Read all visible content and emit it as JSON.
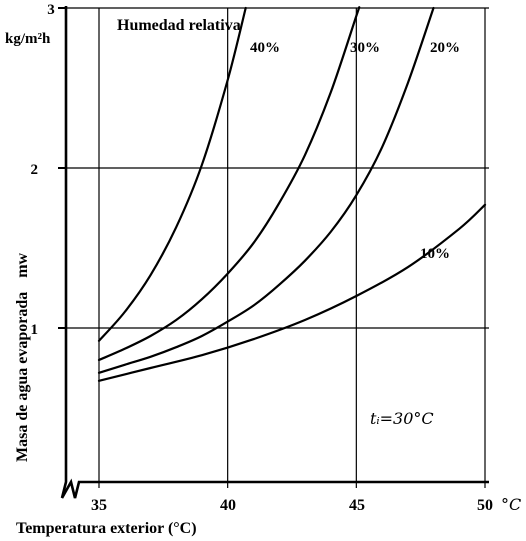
{
  "chart_data": {
    "type": "line",
    "xlabel": "Temperatura exterior (°C)",
    "ylabel": "Masa de agua evaporada",
    "ylabel_symbol": "mw",
    "y_unit": "kg/m²h",
    "x_unit": "°C",
    "xlim": [
      35,
      50
    ],
    "ylim": [
      0,
      3
    ],
    "x_ticks": [
      "35",
      "40",
      "45",
      "50"
    ],
    "y_ticks": [
      "1",
      "2",
      "3"
    ],
    "grid": true,
    "legend_title": "Humedad relativa",
    "annotation": "tᵢ=30°C",
    "series": [
      {
        "name": "40%",
        "x": [
          35,
          36,
          37,
          38,
          39,
          40,
          40.7
        ],
        "y": [
          0.92,
          1.1,
          1.33,
          1.63,
          2.02,
          2.55,
          3.0
        ]
      },
      {
        "name": "30%",
        "x": [
          35,
          36,
          37,
          38,
          39,
          40,
          41,
          42,
          43,
          44,
          45,
          45.1
        ],
        "y": [
          0.8,
          0.87,
          0.95,
          1.05,
          1.18,
          1.34,
          1.53,
          1.78,
          2.08,
          2.47,
          2.95,
          3.0
        ]
      },
      {
        "name": "20%",
        "x": [
          35,
          36,
          37,
          38,
          39,
          40,
          41,
          42,
          43,
          44,
          45,
          46,
          47,
          48
        ],
        "y": [
          0.72,
          0.77,
          0.82,
          0.88,
          0.95,
          1.04,
          1.14,
          1.27,
          1.42,
          1.6,
          1.83,
          2.13,
          2.53,
          3.0
        ]
      },
      {
        "name": "10%",
        "x": [
          35,
          37,
          39,
          41,
          43,
          45,
          47,
          49,
          50
        ],
        "y": [
          0.67,
          0.75,
          0.83,
          0.93,
          1.05,
          1.2,
          1.38,
          1.62,
          1.77
        ]
      }
    ]
  }
}
